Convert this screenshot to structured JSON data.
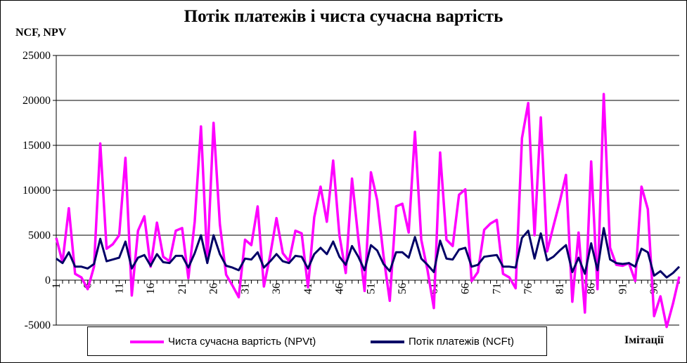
{
  "chart_data": {
    "type": "line",
    "title": "Потік платежів і чиста сучасна вартість",
    "ylabel": "NCF, NPV",
    "xlabel": "Імітації",
    "ylim": [
      -5000,
      25000
    ],
    "yticks": [
      -5000,
      0,
      5000,
      10000,
      15000,
      20000,
      25000
    ],
    "xticks": [
      1,
      6,
      11,
      16,
      21,
      26,
      31,
      36,
      41,
      46,
      51,
      56,
      61,
      66,
      71,
      76,
      81,
      86,
      91,
      96
    ],
    "x": [
      1,
      2,
      3,
      4,
      5,
      6,
      7,
      8,
      9,
      10,
      11,
      12,
      13,
      14,
      15,
      16,
      17,
      18,
      19,
      20,
      21,
      22,
      23,
      24,
      25,
      26,
      27,
      28,
      29,
      30,
      31,
      32,
      33,
      34,
      35,
      36,
      37,
      38,
      39,
      40,
      41,
      42,
      43,
      44,
      45,
      46,
      47,
      48,
      49,
      50,
      51,
      52,
      53,
      54,
      55,
      56,
      57,
      58,
      59,
      60,
      61,
      62,
      63,
      64,
      65,
      66,
      67,
      68,
      69,
      70,
      71,
      72,
      73,
      74,
      75,
      76,
      77,
      78,
      79,
      80,
      81,
      82,
      83,
      84,
      85,
      86,
      87,
      88,
      89,
      90,
      91,
      92,
      93,
      94,
      95,
      96,
      97,
      98,
      99,
      100
    ],
    "grid": "horizontal",
    "legend_position": "bottom",
    "series": [
      {
        "name": "Чиста сучасна вартість (NPVt)",
        "color": "#ff00ff",
        "values": [
          4700,
          2000,
          8000,
          700,
          300,
          -1000,
          1500,
          15200,
          3500,
          4000,
          5000,
          13600,
          -1700,
          5500,
          7100,
          1500,
          6400,
          2600,
          2100,
          5500,
          5800,
          200,
          6500,
          17100,
          2000,
          17500,
          6200,
          600,
          -600,
          -1900,
          4500,
          3900,
          8200,
          -700,
          2800,
          6900,
          3000,
          2100,
          5500,
          5200,
          -800,
          7000,
          10400,
          6500,
          13300,
          5000,
          800,
          11300,
          4600,
          -1200,
          12000,
          8900,
          2700,
          -2300,
          8200,
          8500,
          5300,
          16500,
          4500,
          1100,
          -3100,
          14200,
          4500,
          3800,
          9500,
          10100,
          -100,
          900,
          5600,
          6300,
          6700,
          700,
          300,
          -900,
          15800,
          19700,
          5000,
          18100,
          3200,
          6000,
          8700,
          11700,
          -2400,
          5300,
          -3600,
          13200,
          -1000,
          20700,
          3600,
          1700,
          1600,
          1900,
          -100,
          10400,
          7900,
          -4000,
          -1800,
          -5200,
          -2600,
          400
        ]
      },
      {
        "name": "Потік платежів  (NCFt)",
        "color": "#000066",
        "values": [
          2400,
          1900,
          3100,
          1500,
          1500,
          1300,
          1800,
          4600,
          2100,
          2300,
          2500,
          4300,
          1300,
          2500,
          2800,
          1600,
          2900,
          2000,
          1900,
          2700,
          2700,
          1400,
          3000,
          5000,
          1900,
          5000,
          2900,
          1600,
          1400,
          1100,
          2400,
          2300,
          3100,
          1400,
          2100,
          2900,
          2100,
          1900,
          2700,
          2600,
          1300,
          2900,
          3600,
          2900,
          4300,
          2600,
          1700,
          3800,
          2600,
          1100,
          3900,
          3300,
          1800,
          1000,
          3100,
          3100,
          2500,
          4800,
          2400,
          1700,
          900,
          4400,
          2400,
          2300,
          3400,
          3600,
          1500,
          1700,
          2600,
          2700,
          2800,
          1500,
          1500,
          1400,
          4700,
          5500,
          2400,
          5200,
          2200,
          2600,
          3300,
          3900,
          900,
          2500,
          700,
          4100,
          1100,
          5800,
          2300,
          1900,
          1800,
          1900,
          1500,
          3500,
          3100,
          500,
          1000,
          300,
          800,
          1500
        ]
      }
    ]
  }
}
